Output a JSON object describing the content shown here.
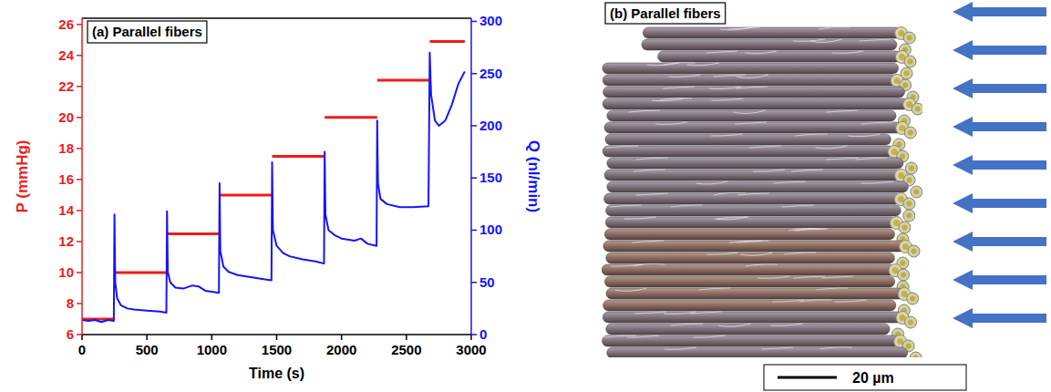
{
  "chart_data": [
    {
      "type": "line",
      "title": "(a) Parallel fibers",
      "x_label": "Time (s)",
      "y_label": "P (mmHg)",
      "y2_label": "Q (nl/min)",
      "xlim": [
        0,
        3000
      ],
      "xticks": [
        0,
        500,
        1000,
        1500,
        2000,
        2500,
        3000
      ],
      "ylim": [
        6,
        26.4
      ],
      "yticks": [
        6,
        8,
        10,
        12,
        14,
        16,
        18,
        20,
        22,
        24,
        26
      ],
      "y2lim": [
        0,
        303
      ],
      "y2ticks": [
        0,
        50,
        100,
        150,
        200,
        250,
        300
      ],
      "grid": false,
      "series": [
        {
          "color": "#ee1c1c",
          "line_style": "solid",
          "x": [
            0,
            250,
            250,
            250,
            655,
            655,
            655,
            1060,
            1060,
            1060,
            1465,
            1465,
            1465,
            1870,
            1870,
            1870,
            2275,
            2275,
            2275,
            2680,
            2680,
            2680,
            2950
          ],
          "values": [
            7,
            7,
            null,
            10,
            10,
            null,
            12.5,
            12.5,
            null,
            15,
            15,
            null,
            17.5,
            17.5,
            null,
            20,
            20,
            null,
            22.4,
            22.4,
            null,
            24.9,
            24.9
          ]
        },
        {
          "color": "#1414ff",
          "line_style": "solid",
          "axis": "y2",
          "x": [
            0,
            50,
            100,
            150,
            200,
            245,
            250,
            256,
            270,
            300,
            350,
            400,
            500,
            600,
            650,
            655,
            661,
            680,
            720,
            780,
            850,
            900,
            950,
            1000,
            1055,
            1060,
            1066,
            1090,
            1130,
            1200,
            1300,
            1400,
            1460,
            1465,
            1471,
            1500,
            1550,
            1600,
            1700,
            1800,
            1865,
            1870,
            1876,
            1900,
            1950,
            2000,
            2100,
            2150,
            2200,
            2270,
            2275,
            2281,
            2300,
            2350,
            2450,
            2550,
            2670,
            2680,
            2690,
            2720,
            2750,
            2800,
            2850,
            2900,
            2950
          ],
          "values": [
            14,
            13,
            14,
            12,
            14,
            13,
            115,
            50,
            35,
            28,
            25,
            24,
            23,
            22,
            21,
            118,
            60,
            50,
            45,
            44,
            47,
            46,
            42,
            41,
            40,
            145,
            80,
            65,
            60,
            57,
            55,
            53,
            52,
            165,
            100,
            85,
            78,
            75,
            72,
            70,
            68,
            175,
            115,
            100,
            95,
            92,
            90,
            92,
            87,
            85,
            205,
            145,
            130,
            125,
            122,
            122,
            123,
            270,
            230,
            205,
            200,
            205,
            220,
            240,
            252
          ]
        }
      ]
    },
    {
      "type": "image",
      "title": "(b) Parallel fibers",
      "scale_bar_label": "20 µm"
    }
  ]
}
